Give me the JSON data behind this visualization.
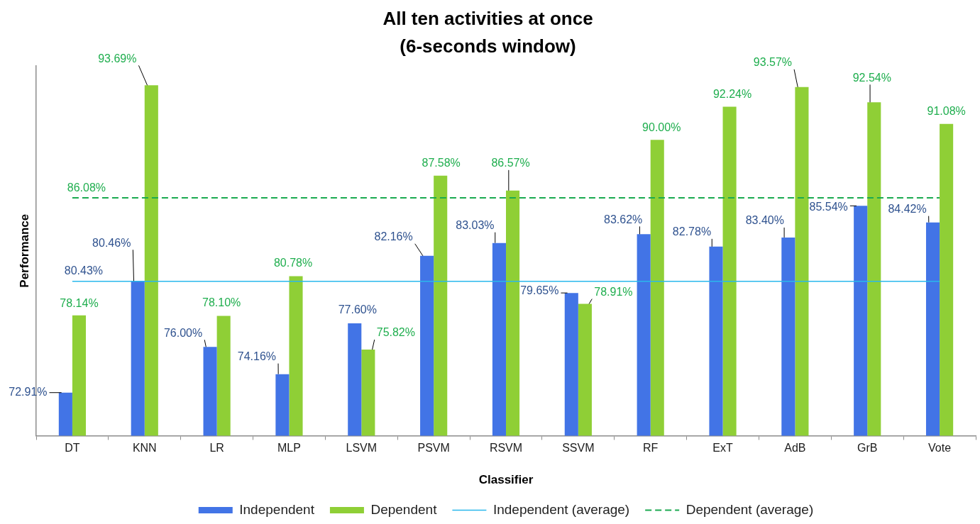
{
  "chart_data": {
    "type": "bar",
    "title": "All ten activities at once\n(6-seconds window)",
    "xlabel": "Classifier",
    "ylabel": "Performance",
    "categories": [
      "DT",
      "KNN",
      "LR",
      "MLP",
      "LSVM",
      "PSVM",
      "RSVM",
      "SSVM",
      "RF",
      "ExT",
      "AdB",
      "GrB",
      "Vote"
    ],
    "ylim": [
      70,
      95
    ],
    "tick_labels": "x",
    "legend": "bottom",
    "series": [
      {
        "name": "Independent",
        "color": "#4274e6",
        "values": [
          72.91,
          80.46,
          76.0,
          74.16,
          77.6,
          82.16,
          83.03,
          79.65,
          83.62,
          82.78,
          83.4,
          85.54,
          84.42
        ],
        "value_labels": [
          "72.91%",
          "80.46%",
          "76.00%",
          "74.16%",
          "77.60%",
          "82.16%",
          "83.03%",
          "79.65%",
          "83.62%",
          "82.78%",
          "83.40%",
          "85.54%",
          "84.42%"
        ]
      },
      {
        "name": "Dependent",
        "color": "#8fcf36",
        "values": [
          78.14,
          93.69,
          78.1,
          80.78,
          75.82,
          87.58,
          86.57,
          78.91,
          90.0,
          92.24,
          93.57,
          92.54,
          91.08
        ],
        "value_labels": [
          "78.14%",
          "93.69%",
          "78.10%",
          "80.78%",
          "75.82%",
          "87.58%",
          "86.57%",
          "78.91%",
          "90.00%",
          "92.24%",
          "93.57%",
          "92.54%",
          "91.08%"
        ]
      },
      {
        "name": "Independent (average)",
        "type": "line",
        "color": "#2ab8ec",
        "line_style": "solid",
        "values": [
          80.43,
          80.43,
          80.43,
          80.43,
          80.43,
          80.43,
          80.43,
          80.43,
          80.43,
          80.43,
          80.43,
          80.43,
          80.43
        ],
        "value_labels": [
          "80.43%",
          null,
          null,
          null,
          null,
          null,
          null,
          null,
          null,
          null,
          null,
          null,
          null
        ]
      },
      {
        "name": "Dependent (average)",
        "type": "line",
        "color": "#1aaa50",
        "line_style": "dashed",
        "values": [
          86.08,
          86.08,
          86.08,
          86.08,
          86.08,
          86.08,
          86.08,
          86.08,
          86.08,
          86.08,
          86.08,
          86.08,
          86.08
        ],
        "value_labels": [
          "86.08%",
          null,
          null,
          null,
          null,
          null,
          null,
          null,
          null,
          null,
          null,
          null,
          null
        ]
      }
    ]
  }
}
